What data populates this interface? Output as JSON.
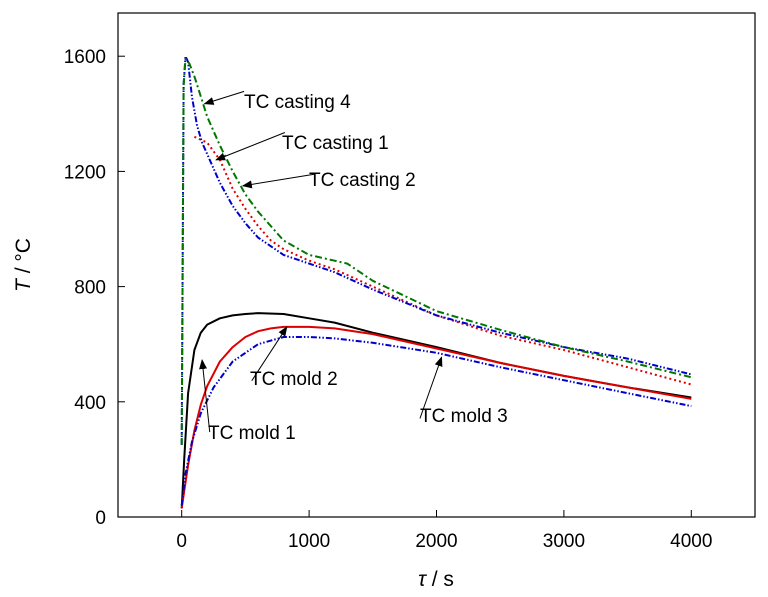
{
  "chart_data": {
    "type": "line",
    "title": "",
    "xlabel_symbol": "τ",
    "xlabel_unit": " / s",
    "ylabel_symbol": "T",
    "ylabel_unit": " / °C",
    "xlim": [
      -500,
      4500
    ],
    "ylim": [
      0,
      1750
    ],
    "xticks": [
      0,
      1000,
      2000,
      3000,
      4000
    ],
    "yticks": [
      0,
      400,
      800,
      1200,
      1600
    ],
    "xtick_labels": [
      "0",
      "1000",
      "2000",
      "3000",
      "4000"
    ],
    "ytick_labels": [
      "0",
      "400",
      "800",
      "1200",
      "1600"
    ],
    "grid": false,
    "legend": "none",
    "series": [
      {
        "name": "TC mold 1",
        "color": "#000000",
        "style": "solid",
        "x": [
          0,
          20,
          50,
          100,
          150,
          200,
          300,
          400,
          500,
          600,
          800,
          1000,
          1200,
          1500,
          2000,
          2500,
          3000,
          3500,
          4000
        ],
        "y": [
          30,
          200,
          430,
          580,
          640,
          668,
          690,
          700,
          705,
          708,
          705,
          690,
          675,
          640,
          590,
          535,
          490,
          450,
          415
        ]
      },
      {
        "name": "TC mold 2",
        "color": "#dd0000",
        "style": "solid",
        "x": [
          0,
          20,
          50,
          100,
          150,
          200,
          300,
          400,
          500,
          600,
          700,
          800,
          1000,
          1200,
          1500,
          2000,
          2500,
          3000,
          3500,
          4000
        ],
        "y": [
          30,
          90,
          180,
          300,
          390,
          455,
          540,
          590,
          625,
          645,
          655,
          660,
          660,
          655,
          635,
          585,
          535,
          490,
          450,
          410
        ]
      },
      {
        "name": "TC mold 3",
        "color": "#0000cc",
        "style": "dashdotdot",
        "x": [
          0,
          30,
          80,
          150,
          250,
          400,
          600,
          800,
          1000,
          1200,
          1500,
          2000,
          2500,
          3000,
          3500,
          4000
        ],
        "y": [
          40,
          150,
          260,
          360,
          450,
          540,
          600,
          625,
          625,
          620,
          605,
          570,
          520,
          475,
          430,
          385
        ]
      },
      {
        "name": "TC casting 1",
        "color": "#dd0000",
        "style": "dotted",
        "x": [
          100,
          200,
          300,
          400,
          500,
          600,
          700,
          800,
          1000,
          1200,
          1500,
          2000,
          2500,
          3000,
          3500,
          4000
        ],
        "y": [
          1320,
          1300,
          1240,
          1140,
          1070,
          1010,
          960,
          930,
          890,
          860,
          800,
          700,
          630,
          580,
          520,
          460
        ]
      },
      {
        "name": "TC casting 2",
        "color": "#0000cc",
        "style": "dashdotdot",
        "x": [
          0,
          15,
          30,
          50,
          80,
          120,
          160,
          200,
          300,
          400,
          500,
          600,
          800,
          1000,
          1200,
          1500,
          2000,
          2500,
          3000,
          3500,
          4000
        ],
        "y": [
          250,
          1500,
          1600,
          1580,
          1460,
          1360,
          1300,
          1260,
          1160,
          1080,
          1020,
          970,
          910,
          880,
          850,
          790,
          700,
          640,
          590,
          550,
          495
        ]
      },
      {
        "name": "TC casting 4",
        "color": "#007700",
        "style": "dashdot",
        "x": [
          0,
          15,
          30,
          60,
          100,
          150,
          200,
          300,
          400,
          500,
          600,
          800,
          1000,
          1200,
          1300,
          1500,
          2000,
          2500,
          3000,
          3500,
          4000
        ],
        "y": [
          250,
          1500,
          1590,
          1575,
          1530,
          1460,
          1390,
          1290,
          1200,
          1120,
          1060,
          960,
          910,
          890,
          880,
          820,
          715,
          650,
          590,
          540,
          485
        ]
      }
    ],
    "annotations": [
      {
        "text": "TC casting 4",
        "x": 490,
        "y": 1478,
        "tx": 180,
        "ty": 1435
      },
      {
        "text": "TC casting 1",
        "x": 810,
        "y": 1335,
        "tx": 270,
        "ty": 1240
      },
      {
        "text": "TC casting 2",
        "x": 1040,
        "y": 1190,
        "tx": 480,
        "ty": 1150
      },
      {
        "text": "TC mold 2",
        "x": 550,
        "y": 473,
        "tx": 825,
        "ty": 660
      },
      {
        "text": "TC mold 1",
        "x": 220,
        "y": 295,
        "tx": 160,
        "ty": 545
      },
      {
        "text": "TC mold 3",
        "x": 1870,
        "y": 342,
        "tx": 2040,
        "ty": 555
      }
    ]
  }
}
